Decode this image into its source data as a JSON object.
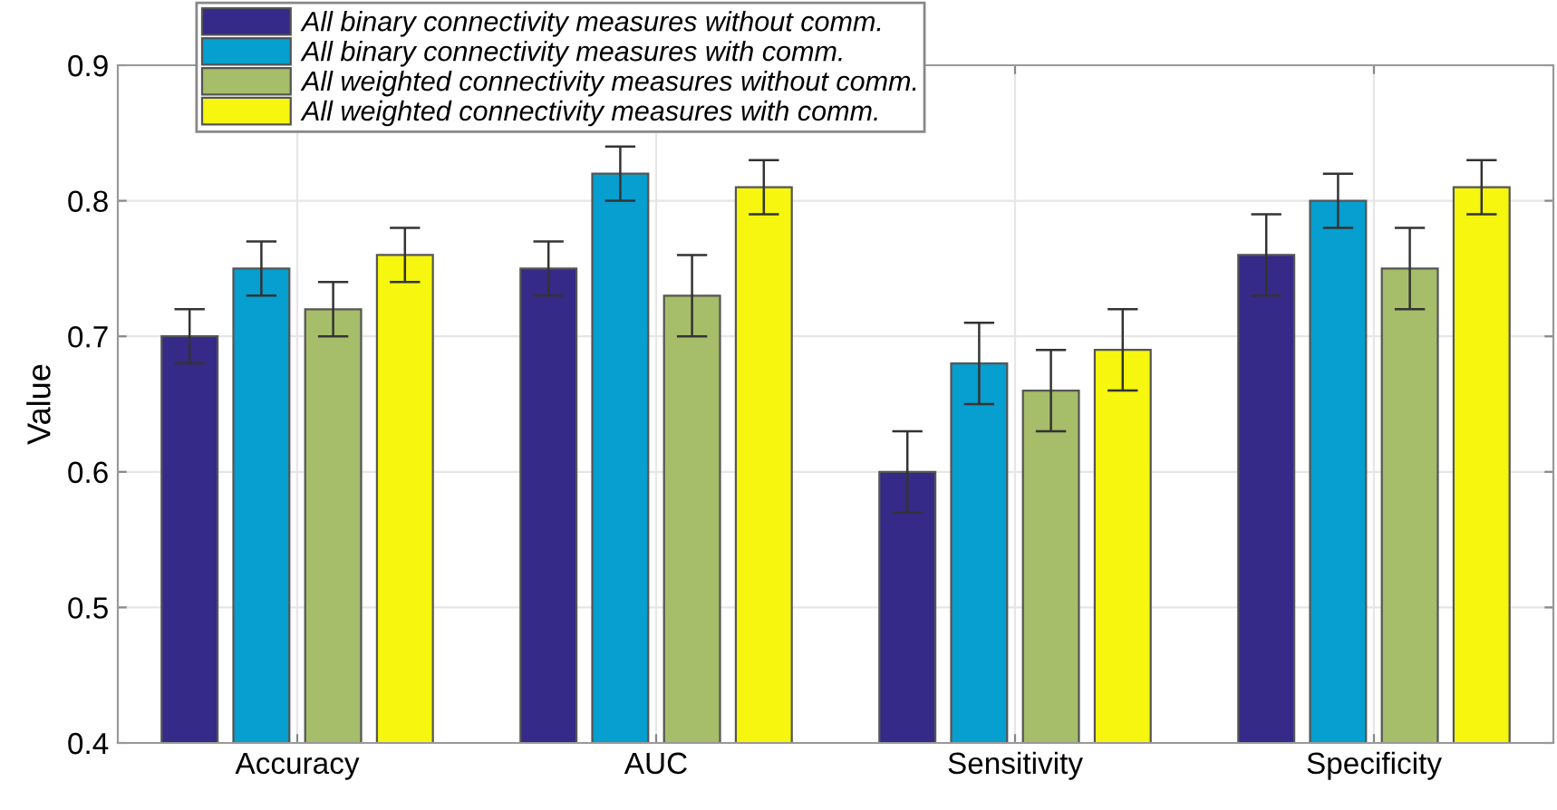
{
  "chart_data": {
    "type": "bar",
    "ylabel": "Value",
    "categories": [
      "Accuracy",
      "AUC",
      "Sensitivity",
      "Specificity"
    ],
    "series": [
      {
        "name": "All binary connectivity measures without comm.",
        "color": "#352a87",
        "values": [
          0.7,
          0.75,
          0.6,
          0.76
        ],
        "errors": [
          0.02,
          0.02,
          0.03,
          0.03
        ]
      },
      {
        "name": "All binary connectivity measures with comm.",
        "color": "#069fcf",
        "values": [
          0.75,
          0.82,
          0.68,
          0.8
        ],
        "errors": [
          0.02,
          0.02,
          0.03,
          0.02
        ]
      },
      {
        "name": "All weighted connectivity measures without comm.",
        "color": "#a6bd69",
        "values": [
          0.72,
          0.73,
          0.66,
          0.75
        ],
        "errors": [
          0.02,
          0.03,
          0.03,
          0.03
        ]
      },
      {
        "name": "All weighted connectivity measures with comm.",
        "color": "#f6f60e",
        "values": [
          0.76,
          0.81,
          0.69,
          0.81
        ],
        "errors": [
          0.02,
          0.02,
          0.03,
          0.02
        ]
      }
    ],
    "ylim": [
      0.4,
      0.9
    ],
    "yticks": [
      0.4,
      0.5,
      0.6,
      0.7,
      0.8,
      0.9
    ],
    "grid": true,
    "legend": "top"
  }
}
